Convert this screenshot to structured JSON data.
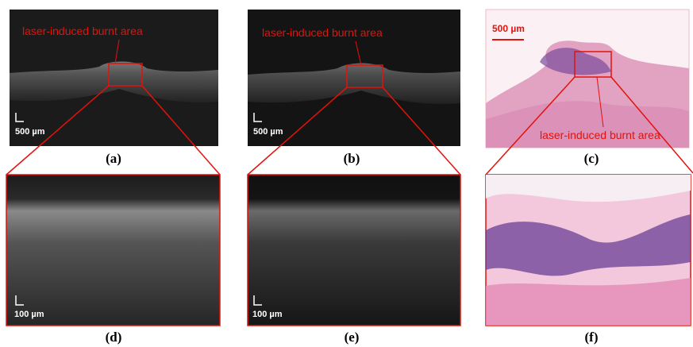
{
  "panels": [
    {
      "label": "(a)",
      "annotation": "laser-induced burnt area",
      "scale_bar": "500 µm"
    },
    {
      "label": "(b)",
      "annotation": "laser-induced burnt area",
      "scale_bar": "500 µm"
    },
    {
      "label": "(c)",
      "annotation": "laser-induced burnt area",
      "scale_bar": "500 µm"
    },
    {
      "label": "(d)",
      "scale_bar": "100 µm"
    },
    {
      "label": "(e)",
      "scale_bar": "100 µm"
    },
    {
      "label": "(f)"
    }
  ]
}
